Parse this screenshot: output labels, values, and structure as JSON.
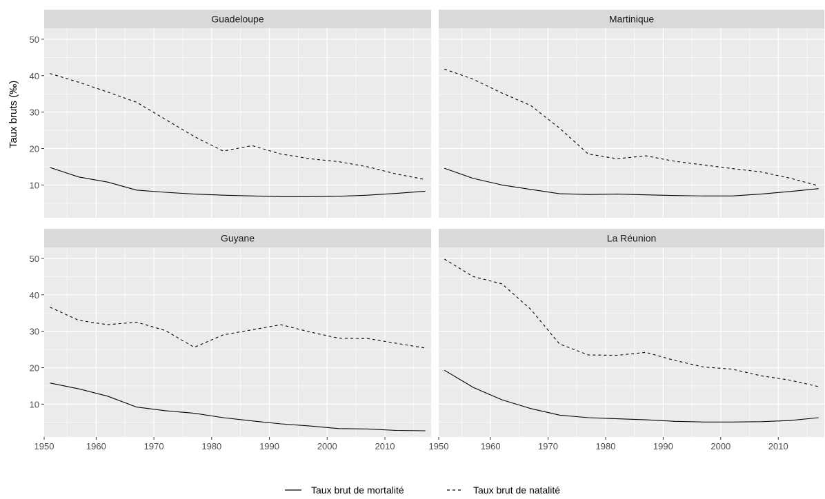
{
  "chart_data": {
    "type": "line",
    "ylabel": "Taux bruts (‰)",
    "xlabel": "",
    "xlim": [
      1951,
      2018
    ],
    "ylim": [
      1,
      53
    ],
    "x_ticks": [
      1950,
      1960,
      1970,
      1980,
      1990,
      2000,
      2010
    ],
    "y_ticks": [
      10,
      20,
      30,
      40,
      50
    ],
    "grid": true,
    "legend_position": "bottom",
    "legend": [
      {
        "label": "Taux brut de mortalité",
        "linetype": "solid"
      },
      {
        "label": "Taux brut de natalité",
        "linetype": "dashed"
      }
    ],
    "panels": [
      {
        "title": "Guadeloupe",
        "series": [
          {
            "name": "Taux brut de mortalité",
            "linetype": "solid",
            "x": [
              1952,
              1957,
              1962,
              1967,
              1972,
              1977,
              1982,
              1987,
              1992,
              1997,
              2002,
              2007,
              2012,
              2017
            ],
            "y": [
              14.8,
              12.2,
              10.8,
              8.6,
              8.0,
              7.5,
              7.2,
              7.0,
              6.8,
              6.8,
              6.9,
              7.2,
              7.7,
              8.3
            ]
          },
          {
            "name": "Taux brut de natalité",
            "linetype": "dashed",
            "x": [
              1952,
              1957,
              1962,
              1967,
              1972,
              1977,
              1982,
              1987,
              1992,
              1997,
              2002,
              2007,
              2012,
              2017
            ],
            "y": [
              40.6,
              38.2,
              35.5,
              32.7,
              28.0,
              23.3,
              19.3,
              20.8,
              18.5,
              17.2,
              16.4,
              15.0,
              13.0,
              11.5
            ]
          }
        ]
      },
      {
        "title": "Martinique",
        "series": [
          {
            "name": "Taux brut de mortalité",
            "linetype": "solid",
            "x": [
              1952,
              1957,
              1962,
              1967,
              1972,
              1977,
              1982,
              1987,
              1992,
              1997,
              2002,
              2007,
              2012,
              2017
            ],
            "y": [
              14.6,
              11.8,
              10.0,
              8.8,
              7.6,
              7.4,
              7.5,
              7.3,
              7.1,
              7.0,
              7.0,
              7.5,
              8.2,
              9.0
            ]
          },
          {
            "name": "Taux brut de natalité",
            "linetype": "dashed",
            "x": [
              1952,
              1957,
              1962,
              1967,
              1972,
              1977,
              1982,
              1987,
              1992,
              1997,
              2002,
              2007,
              2012,
              2017
            ],
            "y": [
              41.8,
              39.0,
              35.2,
              31.8,
              25.6,
              18.5,
              17.2,
              18.0,
              16.5,
              15.5,
              14.5,
              13.6,
              11.9,
              9.8
            ]
          }
        ]
      },
      {
        "title": "Guyane",
        "series": [
          {
            "name": "Taux brut de mortalité",
            "linetype": "solid",
            "x": [
              1952,
              1957,
              1962,
              1967,
              1972,
              1977,
              1982,
              1987,
              1992,
              1997,
              2002,
              2007,
              2012,
              2017
            ],
            "y": [
              15.8,
              14.2,
              12.2,
              9.2,
              8.2,
              7.5,
              6.3,
              5.4,
              4.6,
              4.0,
              3.3,
              3.2,
              2.8,
              2.7
            ]
          },
          {
            "name": "Taux brut de natalité",
            "linetype": "dashed",
            "x": [
              1952,
              1957,
              1962,
              1967,
              1972,
              1977,
              1982,
              1987,
              1992,
              1997,
              2002,
              2007,
              2012,
              2017
            ],
            "y": [
              36.6,
              33.0,
              31.8,
              32.5,
              30.2,
              25.6,
              29.0,
              30.4,
              31.8,
              29.8,
              28.1,
              28.0,
              26.7,
              25.4
            ]
          }
        ]
      },
      {
        "title": "La Réunion",
        "series": [
          {
            "name": "Taux brut de mortalité",
            "linetype": "solid",
            "x": [
              1952,
              1957,
              1962,
              1967,
              1972,
              1977,
              1982,
              1987,
              1992,
              1997,
              2002,
              2007,
              2012,
              2017
            ],
            "y": [
              19.3,
              14.6,
              11.2,
              8.8,
              7.0,
              6.3,
              6.0,
              5.7,
              5.3,
              5.1,
              5.1,
              5.2,
              5.5,
              6.3
            ]
          },
          {
            "name": "Taux brut de natalité",
            "linetype": "dashed",
            "x": [
              1952,
              1957,
              1962,
              1967,
              1972,
              1977,
              1982,
              1987,
              1992,
              1997,
              2002,
              2007,
              2012,
              2017
            ],
            "y": [
              49.8,
              45.0,
              43.0,
              36.0,
              26.5,
              23.5,
              23.4,
              24.2,
              22.0,
              20.2,
              19.6,
              17.8,
              16.6,
              14.8
            ]
          }
        ]
      }
    ]
  },
  "colors": {
    "panel_bg": "#EBEBEB",
    "strip_bg": "#D9D9D9",
    "grid": "#FFFFFF",
    "line": "#000000",
    "tick_text": "#4D4D4D"
  }
}
